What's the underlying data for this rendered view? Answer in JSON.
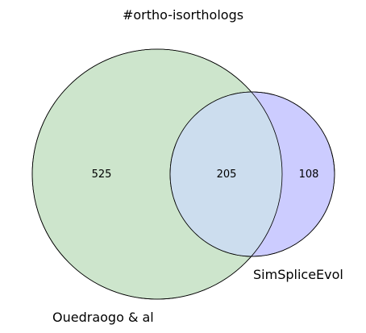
{
  "title": "#ortho-isorthologs",
  "sets": [
    {
      "name": "Ouedraogo & al",
      "only": "525",
      "color": "#cde5cc"
    },
    {
      "name": "SimSpliceEvol",
      "only": "108",
      "color": "#ccccff"
    }
  ],
  "intersection": {
    "value": "205",
    "color": "#ccddee"
  },
  "outline_color": "#000000"
}
